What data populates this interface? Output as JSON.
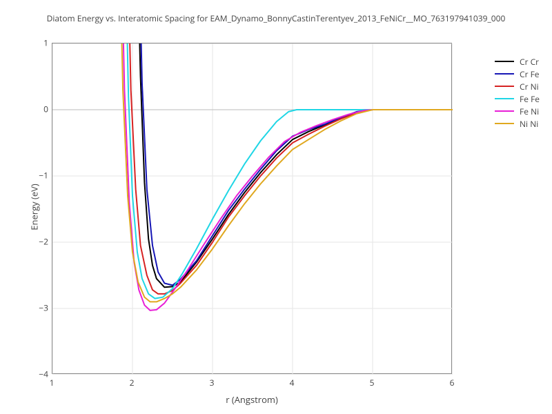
{
  "chart": {
    "type": "line",
    "title": "Diatom Energy vs. Interatomic Spacing for EAM_Dynamo_BonnyCastinTerentyev_2013_FeNiCr__MO_763197941039_000",
    "title_fontsize": 12,
    "title_color": "#444444",
    "xlabel": "r (Angstrom)",
    "ylabel": "Energy (eV)",
    "label_fontsize": 13,
    "label_color": "#444444",
    "tick_fontsize": 12,
    "tick_color": "#444444",
    "background_color": "#ffffff",
    "grid_color": "#e6e6e6",
    "axis_border_color": "#888888",
    "zero_line_color": "#bbbbbb",
    "xlim": [
      1,
      6
    ],
    "ylim": [
      -4,
      1
    ],
    "xticks": [
      1,
      2,
      3,
      4,
      5,
      6
    ],
    "yticks": [
      -4,
      -3,
      -2,
      -1,
      0,
      1
    ],
    "xtick_labels": [
      "1",
      "2",
      "3",
      "4",
      "5",
      "6"
    ],
    "ytick_labels": [
      "−4",
      "−3",
      "−2",
      "−1",
      "0",
      "1"
    ],
    "line_width": 2,
    "legend": {
      "position": "right",
      "fontsize": 12,
      "items": [
        {
          "label": "Cr Cr",
          "color": "#000000"
        },
        {
          "label": "Cr Fe",
          "color": "#1616b5"
        },
        {
          "label": "Cr Ni",
          "color": "#d62222"
        },
        {
          "label": "Fe Fe",
          "color": "#1fd6e5"
        },
        {
          "label": "Fe Ni",
          "color": "#e81fd6"
        },
        {
          "label": "Ni Ni",
          "color": "#e0a81f"
        }
      ]
    },
    "series": [
      {
        "name": "Cr Cr",
        "color": "#000000",
        "points": [
          [
            2.0,
            7.0
          ],
          [
            2.05,
            3.0
          ],
          [
            2.1,
            0.5
          ],
          [
            2.15,
            -1.1
          ],
          [
            2.2,
            -1.95
          ],
          [
            2.25,
            -2.35
          ],
          [
            2.3,
            -2.55
          ],
          [
            2.4,
            -2.68
          ],
          [
            2.5,
            -2.67
          ],
          [
            2.6,
            -2.6
          ],
          [
            2.8,
            -2.3
          ],
          [
            3.0,
            -1.95
          ],
          [
            3.2,
            -1.58
          ],
          [
            3.4,
            -1.25
          ],
          [
            3.6,
            -0.95
          ],
          [
            3.8,
            -0.68
          ],
          [
            4.0,
            -0.45
          ],
          [
            4.2,
            -0.33
          ],
          [
            4.4,
            -0.23
          ],
          [
            4.6,
            -0.13
          ],
          [
            4.8,
            -0.04
          ],
          [
            5.0,
            0.0
          ],
          [
            5.5,
            0.0
          ],
          [
            6.0,
            0.0
          ]
        ]
      },
      {
        "name": "Cr Fe",
        "color": "#1616b5",
        "points": [
          [
            2.02,
            7.0
          ],
          [
            2.07,
            3.0
          ],
          [
            2.12,
            0.4
          ],
          [
            2.18,
            -1.2
          ],
          [
            2.25,
            -2.05
          ],
          [
            2.32,
            -2.45
          ],
          [
            2.4,
            -2.62
          ],
          [
            2.5,
            -2.65
          ],
          [
            2.6,
            -2.56
          ],
          [
            2.8,
            -2.28
          ],
          [
            3.0,
            -1.9
          ],
          [
            3.2,
            -1.52
          ],
          [
            3.4,
            -1.2
          ],
          [
            3.6,
            -0.9
          ],
          [
            3.8,
            -0.62
          ],
          [
            4.0,
            -0.4
          ],
          [
            4.2,
            -0.3
          ],
          [
            4.4,
            -0.22
          ],
          [
            4.6,
            -0.12
          ],
          [
            4.8,
            -0.03
          ],
          [
            5.0,
            0.0
          ],
          [
            5.5,
            0.0
          ],
          [
            6.0,
            0.0
          ]
        ]
      },
      {
        "name": "Cr Ni",
        "color": "#d62222",
        "points": [
          [
            1.88,
            7.0
          ],
          [
            1.93,
            3.0
          ],
          [
            1.98,
            0.3
          ],
          [
            2.04,
            -1.2
          ],
          [
            2.1,
            -2.05
          ],
          [
            2.18,
            -2.5
          ],
          [
            2.25,
            -2.72
          ],
          [
            2.32,
            -2.78
          ],
          [
            2.4,
            -2.78
          ],
          [
            2.5,
            -2.73
          ],
          [
            2.6,
            -2.62
          ],
          [
            2.8,
            -2.35
          ],
          [
            3.0,
            -2.0
          ],
          [
            3.2,
            -1.62
          ],
          [
            3.4,
            -1.3
          ],
          [
            3.6,
            -1.0
          ],
          [
            3.8,
            -0.73
          ],
          [
            4.0,
            -0.5
          ],
          [
            4.2,
            -0.37
          ],
          [
            4.4,
            -0.25
          ],
          [
            4.6,
            -0.14
          ],
          [
            4.8,
            -0.05
          ],
          [
            5.0,
            0.0
          ],
          [
            5.5,
            0.0
          ],
          [
            6.0,
            0.0
          ]
        ]
      },
      {
        "name": "Fe Fe",
        "color": "#1fd6e5",
        "points": [
          [
            1.85,
            7.0
          ],
          [
            1.9,
            3.0
          ],
          [
            1.95,
            0.2
          ],
          [
            2.0,
            -1.3
          ],
          [
            2.06,
            -2.15
          ],
          [
            2.12,
            -2.55
          ],
          [
            2.2,
            -2.78
          ],
          [
            2.28,
            -2.85
          ],
          [
            2.38,
            -2.83
          ],
          [
            2.5,
            -2.7
          ],
          [
            2.62,
            -2.48
          ],
          [
            2.8,
            -2.1
          ],
          [
            3.0,
            -1.65
          ],
          [
            3.2,
            -1.22
          ],
          [
            3.4,
            -0.82
          ],
          [
            3.6,
            -0.47
          ],
          [
            3.8,
            -0.18
          ],
          [
            3.95,
            -0.03
          ],
          [
            4.05,
            0.0
          ],
          [
            4.5,
            0.0
          ],
          [
            5.0,
            0.0
          ],
          [
            6.0,
            0.0
          ]
        ]
      },
      {
        "name": "Fe Ni",
        "color": "#e81fd6",
        "points": [
          [
            1.8,
            7.0
          ],
          [
            1.85,
            3.0
          ],
          [
            1.9,
            0.3
          ],
          [
            1.96,
            -1.4
          ],
          [
            2.02,
            -2.3
          ],
          [
            2.08,
            -2.72
          ],
          [
            2.15,
            -2.95
          ],
          [
            2.22,
            -3.03
          ],
          [
            2.3,
            -3.02
          ],
          [
            2.4,
            -2.92
          ],
          [
            2.52,
            -2.72
          ],
          [
            2.7,
            -2.4
          ],
          [
            2.9,
            -2.02
          ],
          [
            3.1,
            -1.65
          ],
          [
            3.3,
            -1.3
          ],
          [
            3.5,
            -1.0
          ],
          [
            3.7,
            -0.72
          ],
          [
            3.9,
            -0.48
          ],
          [
            4.1,
            -0.34
          ],
          [
            4.3,
            -0.24
          ],
          [
            4.5,
            -0.15
          ],
          [
            4.7,
            -0.07
          ],
          [
            4.9,
            -0.01
          ],
          [
            5.0,
            0.0
          ],
          [
            6.0,
            0.0
          ]
        ]
      },
      {
        "name": "Ni Ni",
        "color": "#e0a81f",
        "points": [
          [
            1.78,
            7.0
          ],
          [
            1.83,
            3.0
          ],
          [
            1.88,
            0.3
          ],
          [
            1.94,
            -1.3
          ],
          [
            2.0,
            -2.15
          ],
          [
            2.07,
            -2.6
          ],
          [
            2.15,
            -2.83
          ],
          [
            2.22,
            -2.9
          ],
          [
            2.3,
            -2.9
          ],
          [
            2.4,
            -2.85
          ],
          [
            2.5,
            -2.78
          ],
          [
            2.6,
            -2.68
          ],
          [
            2.8,
            -2.42
          ],
          [
            3.0,
            -2.1
          ],
          [
            3.2,
            -1.75
          ],
          [
            3.4,
            -1.42
          ],
          [
            3.6,
            -1.12
          ],
          [
            3.8,
            -0.85
          ],
          [
            4.0,
            -0.6
          ],
          [
            4.2,
            -0.45
          ],
          [
            4.4,
            -0.3
          ],
          [
            4.6,
            -0.17
          ],
          [
            4.8,
            -0.06
          ],
          [
            5.0,
            0.0
          ],
          [
            5.5,
            0.0
          ],
          [
            6.0,
            0.0
          ]
        ]
      }
    ]
  }
}
